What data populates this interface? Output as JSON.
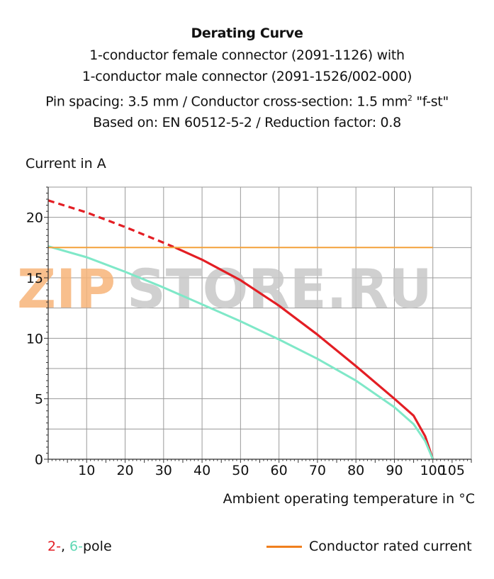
{
  "title": {
    "main": "Derating Curve",
    "line1": "1-conductor female connector (2091-1126) with",
    "line2": "1-conductor male connector (2091-1526/002-000)",
    "line3_pre": "Pin spacing: 3.5 mm / Conductor cross-section: 1.5 mm",
    "line3_sup": "2",
    "line3_post": " \"f-st\"",
    "line4": "Based on: EN 60512-5-2 / Reduction factor: 0.8"
  },
  "watermark": {
    "left": "ZIP",
    "right": "STORE.RU"
  },
  "legend": {
    "two": "2-",
    "comma": ", ",
    "six": "6-",
    "pole": "pole",
    "rated": "Conductor rated current"
  },
  "colors": {
    "two_pole": "#e31e24",
    "six_pole": "#7fe8c8",
    "rated": "#f4a13a",
    "grid": "#9a9a9a",
    "watermark_orange": "#f7b47a",
    "watermark_gray": "#c8c8c8"
  },
  "chart_data": {
    "type": "line",
    "xlabel": "Ambient operating temperature in °C",
    "ylabel": "Current in A",
    "xlim": [
      0,
      110
    ],
    "ylim": [
      0,
      22.5
    ],
    "xticks": [
      10,
      20,
      30,
      40,
      50,
      60,
      70,
      80,
      90,
      100,
      105
    ],
    "yticks": [
      0,
      5,
      10,
      15,
      20
    ],
    "grid": true,
    "series": [
      {
        "name": "2-pole",
        "color": "#e31e24",
        "dashed_until_x": 33,
        "x": [
          0,
          10,
          20,
          30,
          33,
          40,
          50,
          60,
          70,
          80,
          90,
          95,
          98,
          100
        ],
        "y": [
          21.4,
          20.4,
          19.2,
          17.9,
          17.5,
          16.5,
          14.8,
          12.7,
          10.3,
          7.7,
          5.0,
          3.6,
          1.9,
          0
        ]
      },
      {
        "name": "6-pole",
        "color": "#7fe8c8",
        "x": [
          0,
          10,
          20,
          30,
          40,
          50,
          60,
          70,
          80,
          90,
          95,
          98,
          100
        ],
        "y": [
          17.6,
          16.7,
          15.5,
          14.2,
          12.8,
          11.4,
          9.9,
          8.3,
          6.5,
          4.3,
          2.9,
          1.5,
          0
        ]
      },
      {
        "name": "Conductor rated current",
        "color": "#f4a13a",
        "x": [
          0,
          100
        ],
        "y": [
          17.5,
          17.5
        ]
      }
    ]
  }
}
